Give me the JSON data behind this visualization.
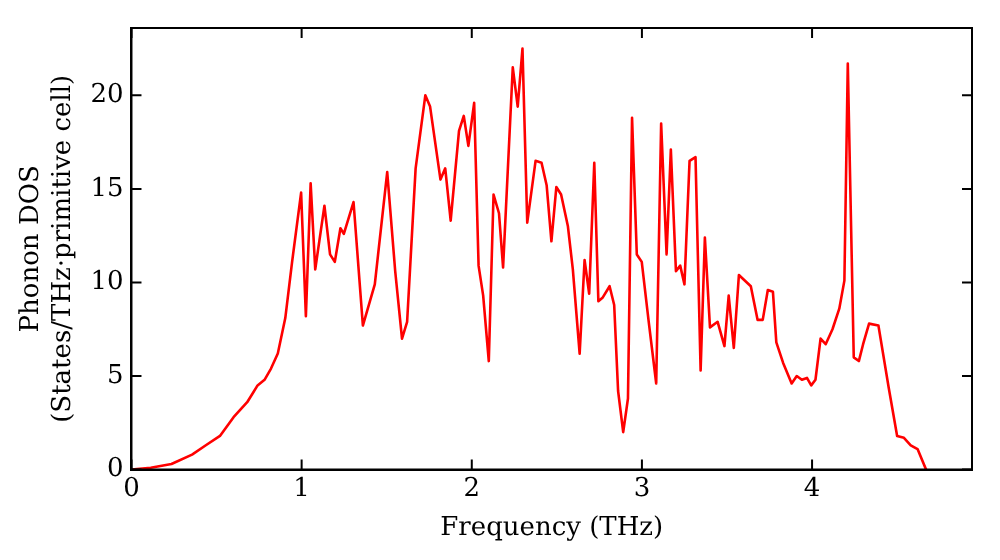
{
  "chart_data": {
    "type": "line",
    "xlabel": "Frequency (THz)",
    "ylabel": "Phonon DOS\n(States/THz·primitive cell)",
    "xlim": [
      0,
      4.94
    ],
    "ylim": [
      0,
      23.6
    ],
    "xticks": [
      0,
      1,
      2,
      3,
      4
    ],
    "yticks": [
      0,
      5,
      10,
      15,
      20
    ],
    "grid": false,
    "legend": false,
    "marker": "none",
    "line_style": "solid",
    "series": [
      {
        "color": "#ff0000",
        "x": [
          0,
          0.113,
          0.235,
          0.356,
          0.437,
          0.52,
          0.6,
          0.68,
          0.741,
          0.782,
          0.82,
          0.86,
          0.904,
          0.944,
          0.997,
          1.025,
          1.053,
          1.08,
          1.134,
          1.167,
          1.195,
          1.228,
          1.248,
          1.305,
          1.36,
          1.43,
          1.503,
          1.55,
          1.59,
          1.62,
          1.67,
          1.727,
          1.755,
          1.816,
          1.844,
          1.876,
          1.925,
          1.953,
          1.98,
          2.014,
          2.04,
          2.067,
          2.1,
          2.128,
          2.16,
          2.184,
          2.241,
          2.27,
          2.298,
          2.326,
          2.375,
          2.41,
          2.44,
          2.468,
          2.497,
          2.525,
          2.565,
          2.594,
          2.634,
          2.663,
          2.69,
          2.72,
          2.744,
          2.77,
          2.81,
          2.837,
          2.86,
          2.89,
          2.918,
          2.942,
          2.97,
          2.999,
          3.04,
          3.084,
          3.113,
          3.145,
          3.17,
          3.2,
          3.225,
          3.25,
          3.28,
          3.315,
          3.345,
          3.37,
          3.4,
          3.445,
          3.485,
          3.51,
          3.54,
          3.57,
          3.64,
          3.68,
          3.71,
          3.74,
          3.77,
          3.79,
          3.83,
          3.88,
          3.91,
          3.94,
          3.97,
          3.995,
          4.02,
          4.05,
          4.08,
          4.12,
          4.16,
          4.19,
          4.21,
          4.245,
          4.275,
          4.3,
          4.335,
          4.39,
          4.45,
          4.5,
          4.54,
          4.58,
          4.62,
          4.67
        ],
        "values": [
          0,
          0.1,
          0.3,
          0.8,
          1.3,
          1.8,
          2.8,
          3.6,
          4.5,
          4.8,
          5.4,
          6.2,
          8.1,
          11.1,
          14.8,
          8.2,
          15.3,
          10.7,
          14.1,
          11.5,
          11.1,
          12.9,
          12.6,
          14.3,
          7.7,
          9.9,
          15.9,
          10.6,
          7.0,
          7.9,
          16.1,
          20.0,
          19.4,
          15.5,
          16.1,
          13.3,
          18.1,
          18.9,
          17.3,
          19.6,
          10.9,
          9.3,
          5.8,
          14.7,
          13.7,
          10.8,
          21.5,
          19.4,
          22.5,
          13.2,
          16.5,
          16.4,
          15.2,
          12.2,
          15.1,
          14.7,
          13.0,
          10.7,
          6.2,
          11.2,
          9.4,
          16.4,
          9.0,
          9.2,
          9.8,
          8.8,
          4.2,
          2.0,
          3.8,
          18.8,
          11.5,
          11.1,
          7.9,
          4.6,
          18.5,
          11.5,
          17.1,
          10.6,
          10.9,
          9.9,
          16.5,
          16.7,
          5.3,
          12.4,
          7.6,
          7.9,
          6.6,
          9.3,
          6.5,
          10.4,
          9.8,
          8.0,
          8.0,
          9.6,
          9.5,
          6.8,
          5.7,
          4.6,
          5.0,
          4.8,
          4.9,
          4.5,
          4.8,
          7.0,
          6.7,
          7.5,
          8.6,
          10.1,
          21.7,
          6.0,
          5.8,
          6.7,
          7.8,
          7.7,
          4.4,
          1.8,
          1.7,
          1.3,
          1.1,
          0
        ]
      }
    ]
  }
}
